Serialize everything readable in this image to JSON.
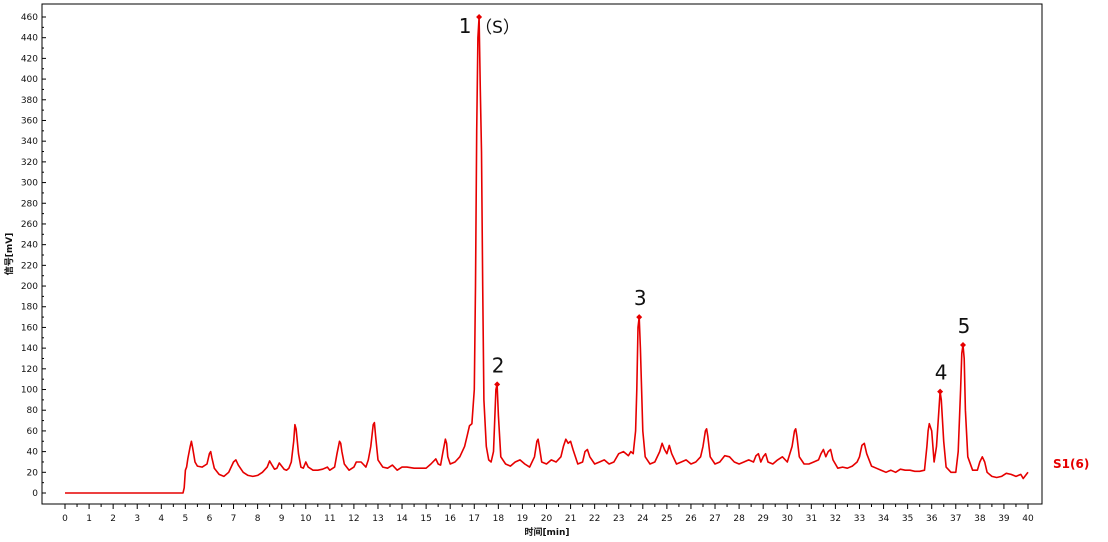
{
  "chart_data": {
    "type": "line",
    "title": "",
    "xlabel": "时间[min]",
    "ylabel": "信号[mV]",
    "xlim": [
      0,
      40
    ],
    "ylim": [
      0,
      460
    ],
    "x_ticks": [
      0,
      1,
      2,
      3,
      4,
      5,
      6,
      7,
      8,
      9,
      10,
      11,
      12,
      13,
      14,
      15,
      16,
      17,
      18,
      19,
      20,
      21,
      22,
      23,
      24,
      25,
      26,
      27,
      28,
      29,
      30,
      31,
      32,
      33,
      34,
      35,
      36,
      37,
      38,
      39,
      40
    ],
    "y_ticks": [
      0,
      20,
      40,
      60,
      80,
      100,
      120,
      140,
      160,
      180,
      200,
      220,
      240,
      260,
      280,
      300,
      320,
      340,
      360,
      380,
      400,
      420,
      440,
      460
    ],
    "grid": false,
    "series": [
      {
        "name": "S1(6)",
        "color": "#e60000",
        "points": [
          [
            0,
            0
          ],
          [
            4.9,
            0
          ],
          [
            4.95,
            5
          ],
          [
            5.0,
            22
          ],
          [
            5.05,
            25
          ],
          [
            5.1,
            33
          ],
          [
            5.2,
            45
          ],
          [
            5.25,
            50
          ],
          [
            5.3,
            44
          ],
          [
            5.4,
            30
          ],
          [
            5.5,
            26
          ],
          [
            5.7,
            25
          ],
          [
            5.9,
            28
          ],
          [
            6.0,
            38
          ],
          [
            6.05,
            40
          ],
          [
            6.1,
            34
          ],
          [
            6.2,
            24
          ],
          [
            6.4,
            18
          ],
          [
            6.6,
            16
          ],
          [
            6.8,
            20
          ],
          [
            7.0,
            30
          ],
          [
            7.1,
            32
          ],
          [
            7.2,
            27
          ],
          [
            7.4,
            20
          ],
          [
            7.6,
            17
          ],
          [
            7.8,
            16
          ],
          [
            8.0,
            17
          ],
          [
            8.2,
            20
          ],
          [
            8.4,
            25
          ],
          [
            8.5,
            31
          ],
          [
            8.6,
            27
          ],
          [
            8.7,
            23
          ],
          [
            8.8,
            24
          ],
          [
            8.9,
            29
          ],
          [
            9.0,
            26
          ],
          [
            9.1,
            23
          ],
          [
            9.2,
            22
          ],
          [
            9.3,
            24
          ],
          [
            9.4,
            30
          ],
          [
            9.5,
            50
          ],
          [
            9.55,
            66
          ],
          [
            9.6,
            62
          ],
          [
            9.7,
            38
          ],
          [
            9.8,
            25
          ],
          [
            9.9,
            24
          ],
          [
            10.0,
            30
          ],
          [
            10.1,
            25
          ],
          [
            10.3,
            22
          ],
          [
            10.5,
            22
          ],
          [
            10.7,
            23
          ],
          [
            10.9,
            25
          ],
          [
            11.0,
            22
          ],
          [
            11.2,
            25
          ],
          [
            11.3,
            38
          ],
          [
            11.4,
            50
          ],
          [
            11.45,
            48
          ],
          [
            11.5,
            40
          ],
          [
            11.6,
            28
          ],
          [
            11.8,
            22
          ],
          [
            12.0,
            25
          ],
          [
            12.1,
            30
          ],
          [
            12.3,
            30
          ],
          [
            12.5,
            25
          ],
          [
            12.6,
            32
          ],
          [
            12.7,
            45
          ],
          [
            12.8,
            66
          ],
          [
            12.85,
            68
          ],
          [
            12.9,
            55
          ],
          [
            13.0,
            32
          ],
          [
            13.2,
            25
          ],
          [
            13.4,
            24
          ],
          [
            13.6,
            27
          ],
          [
            13.8,
            22
          ],
          [
            14.0,
            25
          ],
          [
            14.2,
            25
          ],
          [
            14.5,
            24
          ],
          [
            14.8,
            24
          ],
          [
            15.0,
            24
          ],
          [
            15.2,
            28
          ],
          [
            15.4,
            33
          ],
          [
            15.5,
            28
          ],
          [
            15.6,
            27
          ],
          [
            15.7,
            40
          ],
          [
            15.8,
            52
          ],
          [
            15.85,
            48
          ],
          [
            15.9,
            35
          ],
          [
            16.0,
            28
          ],
          [
            16.2,
            30
          ],
          [
            16.4,
            35
          ],
          [
            16.6,
            45
          ],
          [
            16.7,
            55
          ],
          [
            16.8,
            65
          ],
          [
            16.9,
            67
          ],
          [
            17.0,
            100
          ],
          [
            17.05,
            200
          ],
          [
            17.1,
            350
          ],
          [
            17.15,
            440
          ],
          [
            17.2,
            460
          ],
          [
            17.25,
            390
          ],
          [
            17.3,
            330
          ],
          [
            17.35,
            200
          ],
          [
            17.4,
            90
          ],
          [
            17.5,
            45
          ],
          [
            17.6,
            32
          ],
          [
            17.7,
            30
          ],
          [
            17.8,
            40
          ],
          [
            17.85,
            70
          ],
          [
            17.9,
            100
          ],
          [
            17.95,
            105
          ],
          [
            18.0,
            75
          ],
          [
            18.1,
            35
          ],
          [
            18.3,
            28
          ],
          [
            18.5,
            26
          ],
          [
            18.7,
            30
          ],
          [
            18.9,
            32
          ],
          [
            19.1,
            28
          ],
          [
            19.3,
            25
          ],
          [
            19.5,
            35
          ],
          [
            19.6,
            50
          ],
          [
            19.65,
            52
          ],
          [
            19.7,
            45
          ],
          [
            19.8,
            30
          ],
          [
            20.0,
            28
          ],
          [
            20.2,
            32
          ],
          [
            20.4,
            30
          ],
          [
            20.6,
            35
          ],
          [
            20.7,
            45
          ],
          [
            20.8,
            52
          ],
          [
            20.9,
            48
          ],
          [
            21.0,
            50
          ],
          [
            21.1,
            42
          ],
          [
            21.3,
            28
          ],
          [
            21.5,
            30
          ],
          [
            21.6,
            40
          ],
          [
            21.7,
            42
          ],
          [
            21.8,
            35
          ],
          [
            22.0,
            28
          ],
          [
            22.2,
            30
          ],
          [
            22.4,
            32
          ],
          [
            22.6,
            28
          ],
          [
            22.8,
            30
          ],
          [
            23.0,
            38
          ],
          [
            23.2,
            40
          ],
          [
            23.4,
            36
          ],
          [
            23.5,
            40
          ],
          [
            23.6,
            38
          ],
          [
            23.7,
            60
          ],
          [
            23.75,
            100
          ],
          [
            23.8,
            160
          ],
          [
            23.85,
            170
          ],
          [
            23.9,
            140
          ],
          [
            24.0,
            60
          ],
          [
            24.1,
            35
          ],
          [
            24.3,
            28
          ],
          [
            24.5,
            30
          ],
          [
            24.7,
            40
          ],
          [
            24.8,
            48
          ],
          [
            24.9,
            42
          ],
          [
            25.0,
            38
          ],
          [
            25.1,
            46
          ],
          [
            25.2,
            38
          ],
          [
            25.4,
            28
          ],
          [
            25.6,
            30
          ],
          [
            25.8,
            32
          ],
          [
            26.0,
            28
          ],
          [
            26.2,
            30
          ],
          [
            26.4,
            35
          ],
          [
            26.5,
            45
          ],
          [
            26.6,
            60
          ],
          [
            26.65,
            62
          ],
          [
            26.7,
            55
          ],
          [
            26.8,
            35
          ],
          [
            27.0,
            28
          ],
          [
            27.2,
            30
          ],
          [
            27.4,
            36
          ],
          [
            27.6,
            35
          ],
          [
            27.8,
            30
          ],
          [
            28.0,
            28
          ],
          [
            28.2,
            30
          ],
          [
            28.4,
            32
          ],
          [
            28.6,
            30
          ],
          [
            28.7,
            36
          ],
          [
            28.8,
            38
          ],
          [
            28.9,
            30
          ],
          [
            29.0,
            35
          ],
          [
            29.1,
            38
          ],
          [
            29.2,
            30
          ],
          [
            29.4,
            28
          ],
          [
            29.6,
            32
          ],
          [
            29.8,
            35
          ],
          [
            30.0,
            30
          ],
          [
            30.2,
            45
          ],
          [
            30.3,
            60
          ],
          [
            30.35,
            62
          ],
          [
            30.4,
            55
          ],
          [
            30.5,
            35
          ],
          [
            30.7,
            28
          ],
          [
            30.9,
            28
          ],
          [
            31.1,
            30
          ],
          [
            31.3,
            32
          ],
          [
            31.4,
            38
          ],
          [
            31.5,
            42
          ],
          [
            31.6,
            35
          ],
          [
            31.7,
            40
          ],
          [
            31.8,
            42
          ],
          [
            31.9,
            32
          ],
          [
            32.1,
            24
          ],
          [
            32.3,
            25
          ],
          [
            32.5,
            24
          ],
          [
            32.7,
            26
          ],
          [
            32.9,
            30
          ],
          [
            33.0,
            35
          ],
          [
            33.1,
            46
          ],
          [
            33.2,
            48
          ],
          [
            33.3,
            38
          ],
          [
            33.5,
            26
          ],
          [
            33.7,
            24
          ],
          [
            33.9,
            22
          ],
          [
            34.1,
            20
          ],
          [
            34.3,
            22
          ],
          [
            34.5,
            20
          ],
          [
            34.7,
            23
          ],
          [
            34.9,
            22
          ],
          [
            35.1,
            22
          ],
          [
            35.3,
            21
          ],
          [
            35.5,
            21
          ],
          [
            35.7,
            22
          ],
          [
            35.8,
            45
          ],
          [
            35.85,
            60
          ],
          [
            35.9,
            67
          ],
          [
            36.0,
            60
          ],
          [
            36.1,
            30
          ],
          [
            36.2,
            45
          ],
          [
            36.3,
            80
          ],
          [
            36.35,
            98
          ],
          [
            36.4,
            90
          ],
          [
            36.5,
            50
          ],
          [
            36.6,
            25
          ],
          [
            36.8,
            20
          ],
          [
            37.0,
            20
          ],
          [
            37.1,
            40
          ],
          [
            37.2,
            100
          ],
          [
            37.25,
            135
          ],
          [
            37.3,
            143
          ],
          [
            37.35,
            130
          ],
          [
            37.4,
            80
          ],
          [
            37.5,
            35
          ],
          [
            37.7,
            22
          ],
          [
            37.9,
            22
          ],
          [
            38.0,
            30
          ],
          [
            38.1,
            35
          ],
          [
            38.2,
            30
          ],
          [
            38.3,
            20
          ],
          [
            38.5,
            16
          ],
          [
            38.7,
            15
          ],
          [
            38.9,
            16
          ],
          [
            39.1,
            19
          ],
          [
            39.3,
            18
          ],
          [
            39.5,
            16
          ],
          [
            39.7,
            18
          ],
          [
            39.8,
            14
          ],
          [
            40.0,
            20
          ]
        ]
      }
    ],
    "peaks": [
      {
        "label": "1",
        "suffix": "（S）",
        "x": 17.2,
        "y": 460
      },
      {
        "label": "2",
        "suffix": "",
        "x": 17.95,
        "y": 105
      },
      {
        "label": "3",
        "suffix": "",
        "x": 23.85,
        "y": 170
      },
      {
        "label": "4",
        "suffix": "",
        "x": 36.35,
        "y": 98
      },
      {
        "label": "5",
        "suffix": "",
        "x": 37.3,
        "y": 143
      }
    ],
    "series_label": "S1(6)"
  }
}
